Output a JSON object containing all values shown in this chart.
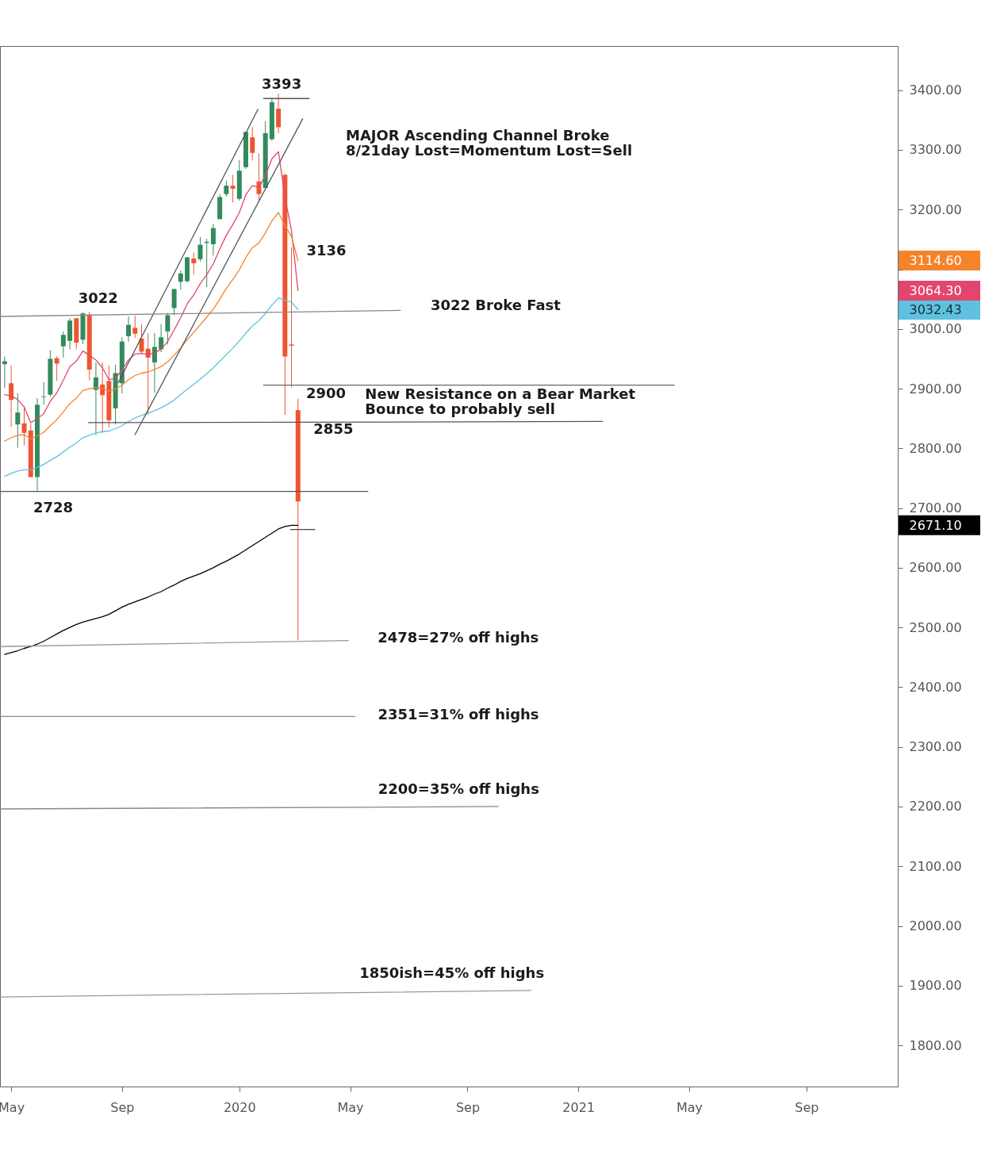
{
  "chart_data": {
    "type": "candlestick",
    "x": [
      "2019-04-29",
      "2019-05-06",
      "2019-05-13",
      "2019-05-20",
      "2019-05-27",
      "2019-06-03",
      "2019-06-10",
      "2019-06-17",
      "2019-06-24",
      "2019-07-01",
      "2019-07-08",
      "2019-07-15",
      "2019-07-22",
      "2019-07-29",
      "2019-08-05",
      "2019-08-12",
      "2019-08-19",
      "2019-08-26",
      "2019-09-02",
      "2019-09-09",
      "2019-09-16",
      "2019-09-23",
      "2019-09-30",
      "2019-10-07",
      "2019-10-14",
      "2019-10-21",
      "2019-10-28",
      "2019-11-04",
      "2019-11-11",
      "2019-11-18",
      "2019-11-25",
      "2019-12-02",
      "2019-12-09",
      "2019-12-16",
      "2019-12-23",
      "2019-12-30",
      "2020-01-06",
      "2020-01-13",
      "2020-01-20",
      "2020-01-27",
      "2020-02-03",
      "2020-02-10",
      "2020-02-17",
      "2020-02-24",
      "2020-03-02",
      "2020-03-09"
    ],
    "ohlc": [
      [
        2941,
        2954,
        2901,
        2946
      ],
      [
        2909,
        2939,
        2836,
        2881
      ],
      [
        2840,
        2892,
        2801,
        2860
      ],
      [
        2842,
        2871,
        2805,
        2826
      ],
      [
        2830,
        2841,
        2751,
        2752
      ],
      [
        2752,
        2884,
        2729,
        2873
      ],
      [
        2886,
        2911,
        2873,
        2887
      ],
      [
        2890,
        2964,
        2887,
        2950
      ],
      [
        2951,
        2954,
        2913,
        2942
      ],
      [
        2971,
        2996,
        2952,
        2990
      ],
      [
        2980,
        3018,
        2966,
        3014
      ],
      [
        3018,
        3018,
        2966,
        2977
      ],
      [
        2982,
        3028,
        2975,
        3026
      ],
      [
        3024,
        3029,
        2914,
        2932
      ],
      [
        2898,
        2944,
        2822,
        2919
      ],
      [
        2907,
        2944,
        2826,
        2889
      ],
      [
        2913,
        2939,
        2835,
        2847
      ],
      [
        2867,
        2940,
        2840,
        2926
      ],
      [
        2909,
        2986,
        2892,
        2979
      ],
      [
        2988,
        3021,
        2979,
        3007
      ],
      [
        3002,
        3022,
        2985,
        2992
      ],
      [
        2984,
        3008,
        2958,
        2962
      ],
      [
        2967,
        2993,
        2856,
        2952
      ],
      [
        2944,
        2993,
        2893,
        2970
      ],
      [
        2966,
        3008,
        2961,
        2986
      ],
      [
        2996,
        3027,
        2974,
        3023
      ],
      [
        3035,
        3067,
        3023,
        3067
      ],
      [
        3079,
        3098,
        3066,
        3093
      ],
      [
        3080,
        3120,
        3078,
        3120
      ],
      [
        3118,
        3128,
        3091,
        3110
      ],
      [
        3117,
        3154,
        3113,
        3141
      ],
      [
        3144,
        3151,
        3070,
        3146
      ],
      [
        3142,
        3176,
        3123,
        3169
      ],
      [
        3184,
        3226,
        3184,
        3221
      ],
      [
        3226,
        3248,
        3222,
        3240
      ],
      [
        3240,
        3258,
        3212,
        3235
      ],
      [
        3218,
        3283,
        3215,
        3265
      ],
      [
        3271,
        3330,
        3268,
        3330
      ],
      [
        3321,
        3338,
        3282,
        3295
      ],
      [
        3247,
        3294,
        3215,
        3226
      ],
      [
        3236,
        3348,
        3236,
        3328
      ],
      [
        3318,
        3385,
        3315,
        3380
      ],
      [
        3369,
        3394,
        3328,
        3338
      ],
      [
        3258,
        3260,
        2856,
        2954
      ],
      [
        2974,
        3137,
        2902,
        2972
      ],
      [
        2864,
        2883,
        2479,
        2711
      ]
    ],
    "colors": [
      "#338a5c",
      "#ee5533",
      "#338a5c",
      "#ee5533",
      "#ee5533",
      "#338a5c",
      "#338a5c",
      "#338a5c",
      "#ee5533",
      "#338a5c",
      "#338a5c",
      "#ee5533",
      "#338a5c",
      "#ee5533",
      "#338a5c",
      "#ee5533",
      "#ee5533",
      "#338a5c",
      "#338a5c",
      "#338a5c",
      "#ee5533",
      "#ee5533",
      "#ee5533",
      "#338a5c",
      "#338a5c",
      "#338a5c",
      "#338a5c",
      "#338a5c",
      "#338a5c",
      "#ee5533",
      "#338a5c",
      "#338a5c",
      "#338a5c",
      "#338a5c",
      "#338a5c",
      "#ee5533",
      "#338a5c",
      "#338a5c",
      "#ee5533",
      "#ee5533",
      "#338a5c",
      "#338a5c",
      "#ee5533",
      "#ee5533",
      "#ee5533",
      "#ee5533"
    ],
    "series": [
      {
        "type": "line",
        "color": "#e2466e",
        "values": [
          2890,
          2888,
          2882,
          2869,
          2843,
          2850,
          2858,
          2879,
          2893,
          2914,
          2937,
          2946,
          2963,
          2956,
          2948,
          2935,
          2915,
          2918,
          2931,
          2948,
          2958,
          2959,
          2957,
          2960,
          2966,
          2979,
          2998,
          3019,
          3042,
          3057,
          3076,
          3091,
          3109,
          3134,
          3157,
          3175,
          3195,
          3225,
          3240,
          3237,
          3257,
          3285,
          3297,
          3220,
          3165,
          3064.3
        ]
      },
      {
        "type": "line",
        "color": "#f5832a",
        "values": [
          2812,
          2818,
          2822,
          2823,
          2816,
          2821,
          2827,
          2838,
          2848,
          2861,
          2875,
          2884,
          2897,
          2900,
          2902,
          2901,
          2896,
          2899,
          2906,
          2915,
          2922,
          2926,
          2928,
          2932,
          2937,
          2945,
          2956,
          2968,
          2982,
          2994,
          3007,
          3020,
          3033,
          3050,
          3068,
          3083,
          3099,
          3120,
          3136,
          3144,
          3161,
          3181,
          3195,
          3173,
          3155,
          3114.6
        ]
      },
      {
        "type": "line",
        "color": "#5ec1e0",
        "values": [
          2753,
          2758,
          2762,
          2764,
          2764,
          2768,
          2773,
          2780,
          2786,
          2794,
          2802,
          2809,
          2818,
          2822,
          2826,
          2828,
          2829,
          2833,
          2838,
          2845,
          2851,
          2855,
          2859,
          2863,
          2868,
          2874,
          2881,
          2890,
          2899,
          2907,
          2916,
          2925,
          2935,
          2946,
          2957,
          2968,
          2980,
          2993,
          3005,
          3014,
          3026,
          3040,
          3052,
          3048,
          3045,
          3032.43
        ]
      },
      {
        "type": "line",
        "color": "#000000",
        "values": [
          2455,
          2458,
          2461,
          2465,
          2468,
          2472,
          2477,
          2483,
          2489,
          2495,
          2500,
          2505,
          2509,
          2512,
          2515,
          2518,
          2522,
          2528,
          2534,
          2539,
          2543,
          2547,
          2551,
          2556,
          2560,
          2566,
          2571,
          2577,
          2582,
          2586,
          2590,
          2595,
          2600,
          2606,
          2611,
          2617,
          2623,
          2630,
          2637,
          2644,
          2651,
          2658,
          2665,
          2669,
          2671,
          2671.1
        ]
      },
      {
        "type": "line",
        "color": "#555555",
        "x": [
          "2019-08-29",
          "2020-01-26"
        ],
        "values": [
          2910,
          3368
        ]
      },
      {
        "type": "line",
        "color": "#555555",
        "x": [
          "2019-09-16",
          "2020-03-14"
        ],
        "values": [
          2823,
          3352
        ]
      },
      {
        "type": "line",
        "color": "#555555",
        "x": [
          "2020-02-01",
          "2020-03-21"
        ],
        "values": [
          3386,
          3386
        ]
      },
      {
        "type": "line",
        "color": "#888888",
        "x": [
          "2019-04-24",
          "2020-06-27"
        ],
        "values": [
          3021,
          3031
        ]
      },
      {
        "type": "line",
        "color": "#666666",
        "x": [
          "2020-02-01",
          "2021-04-17"
        ],
        "values": [
          2906,
          2906
        ]
      },
      {
        "type": "line",
        "color": "#555555",
        "x": [
          "2019-07-28",
          "2021-01-30"
        ],
        "values": [
          2843,
          2845
        ]
      },
      {
        "type": "line",
        "color": "#555555",
        "x": [
          "2019-04-24",
          "2020-05-23"
        ],
        "values": [
          2728,
          2728
        ]
      },
      {
        "type": "line",
        "color": "#444444",
        "x": [
          "2020-03-01",
          "2020-03-27"
        ],
        "values": [
          2664,
          2664
        ]
      },
      {
        "type": "line",
        "color": "#999999",
        "x": [
          "2019-04-24",
          "2020-05-02"
        ],
        "values": [
          2468,
          2478
        ]
      },
      {
        "type": "line",
        "color": "#888888",
        "x": [
          "2019-04-24",
          "2020-05-09"
        ],
        "values": [
          2351,
          2351
        ]
      },
      {
        "type": "line",
        "color": "#888888",
        "x": [
          "2019-04-24",
          "2020-10-10"
        ],
        "values": [
          2196,
          2200
        ]
      },
      {
        "type": "line",
        "color": "#999999",
        "x": [
          "2019-04-24",
          "2020-11-14"
        ],
        "values": [
          1881,
          1892
        ]
      }
    ],
    "xlim": [
      "2019-04-24",
      "2021-12-13"
    ],
    "xticks": [
      {
        "value": "2019-05-06",
        "label": "May"
      },
      {
        "value": "2019-09-02",
        "label": "Sep"
      },
      {
        "value": "2020-01-06",
        "label": "2020"
      },
      {
        "value": "2020-05-04",
        "label": "May"
      },
      {
        "value": "2020-09-07",
        "label": "Sep"
      },
      {
        "value": "2021-01-04",
        "label": "2021"
      },
      {
        "value": "2021-05-03",
        "label": "May"
      },
      {
        "value": "2021-09-06",
        "label": "Sep"
      }
    ],
    "ylim": [
      1731,
      3474
    ],
    "yticks": [
      {
        "value": 1800,
        "label": "1800.00"
      },
      {
        "value": 1900,
        "label": "1900.00"
      },
      {
        "value": 2000,
        "label": "2000.00"
      },
      {
        "value": 2100,
        "label": "2100.00"
      },
      {
        "value": 2200,
        "label": "2200.00"
      },
      {
        "value": 2300,
        "label": "2300.00"
      },
      {
        "value": 2400,
        "label": "2400.00"
      },
      {
        "value": 2500,
        "label": "2500.00"
      },
      {
        "value": 2600,
        "label": "2600.00"
      },
      {
        "value": 2671.1,
        "label": "2671.10"
      },
      {
        "value": 2700,
        "label": "2700.00"
      },
      {
        "value": 2800,
        "label": "2800.00"
      },
      {
        "value": 2900,
        "label": "2900.00"
      },
      {
        "value": 3000,
        "label": "3000.00"
      },
      {
        "value": 3032.43,
        "label": "3032.43"
      },
      {
        "value": 3064.3,
        "label": "3064.30"
      },
      {
        "value": 3100,
        "label": null
      },
      {
        "value": 3114.6,
        "label": "3114.60"
      },
      {
        "value": 3200,
        "label": "3200.00"
      },
      {
        "value": 3300,
        "label": "3300.00"
      },
      {
        "value": 3400,
        "label": "3400.00"
      }
    ],
    "annotations": [
      {
        "text": "3393",
        "x": "2020-02-17",
        "y": 3393
      },
      "MAJOR Ascending Channel Broke\n8/21day Lost=Momentum Lost=Sell",
      {
        "text": "3136",
        "x": "2020-03-02",
        "y": 3136
      },
      {
        "text": "3022",
        "x": "2019-07-29",
        "y": 3022
      },
      {
        "text": "3022 Broke Fast",
        "x": "2020-06-27",
        "y": 3031
      },
      {
        "text": "2900",
        "x": "2020-04-08",
        "y": 2906
      },
      {
        "text": "New Resistance on a Bear Market\nBounce to probably sell",
        "x": "2020-05-20",
        "y": 2906
      },
      {
        "text": "2855",
        "x": "2020-04-16",
        "y": 2844
      },
      {
        "text": "2728",
        "x": "2019-06-03",
        "y": 2728
      },
      {
        "text": "2478=27% off highs",
        "x": "2020-05-02",
        "y": 2478
      },
      {
        "text": "2351=31% off highs",
        "x": "2020-05-09",
        "y": 2351
      },
      {
        "text": "2200=35% off highs",
        "x": "2020-06-03",
        "y": 2200
      },
      {
        "text": "1850ish=45% off highs",
        "x": "2020-05-14",
        "y": 1889
      }
    ]
  }
}
